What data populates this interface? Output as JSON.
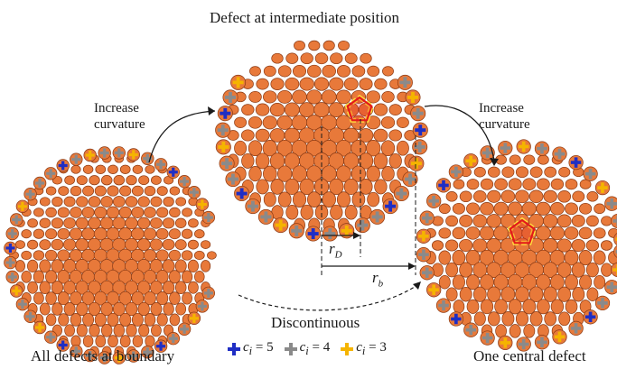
{
  "labels": {
    "title": "Defect at intermediate position",
    "increase_left": [
      "Increase",
      "curvature"
    ],
    "increase_right": [
      "Increase",
      "curvature"
    ],
    "discontinuous": "Discontinuous",
    "bottom_left": "All defects at boundary",
    "bottom_right": "One central defect",
    "r_d": "r",
    "r_d_sub": "D",
    "r_b": "r",
    "r_b_sub": "b"
  },
  "legend": [
    {
      "color": "#1f2ec4",
      "text_var": "c",
      "text_sub": "i",
      "text_rest": " = 5"
    },
    {
      "color": "#8a8a8a",
      "text_var": "c",
      "text_sub": "i",
      "text_rest": " = 4"
    },
    {
      "color": "#f5b400",
      "text_var": "c",
      "text_sub": "i",
      "text_rest": " = 3"
    }
  ],
  "colors": {
    "cell": "#e8793a",
    "cell_edge": "#8a3a14",
    "defect_outline": "#e31a1a",
    "defect_halo": "#ffe23d",
    "plus_5": "#1f2ec4",
    "plus_4": "#8a8a8a",
    "plus_3": "#f5b400"
  }
}
